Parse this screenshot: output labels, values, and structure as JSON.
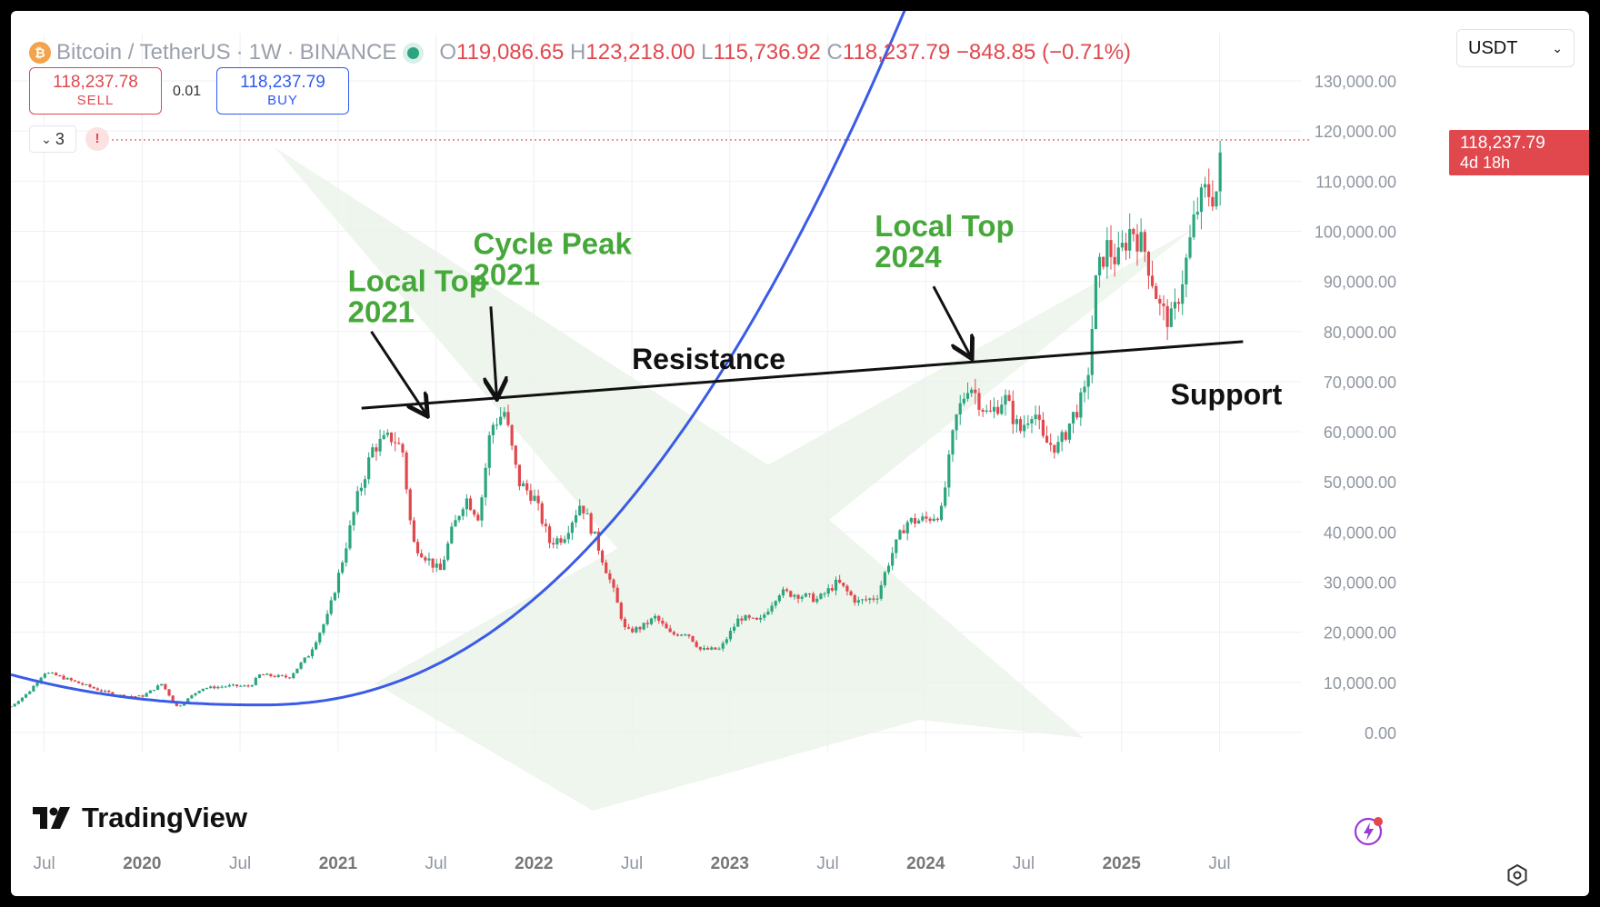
{
  "header": {
    "symbol": "Bitcoin / TetherUS",
    "interval": "1W",
    "exchange": "BINANCE",
    "dot_sep": "·",
    "o_label": "O",
    "o_value": "119,086.65",
    "h_label": "H",
    "h_value": "123,218.00",
    "l_label": "L",
    "l_value": "115,736.92",
    "c_label": "C",
    "c_value": "118,237.79",
    "change": "−848.85 (−0.71%)"
  },
  "trade": {
    "sell_price": "118,237.78",
    "sell_label": "SELL",
    "spread": "0.01",
    "buy_price": "118,237.79",
    "buy_label": "BUY"
  },
  "indicators": {
    "count": "3",
    "alert": "!"
  },
  "currency": {
    "selected": "USDT"
  },
  "price_tag": {
    "price": "118,237.79",
    "countdown": "4d 18h"
  },
  "logo": {
    "text": "TradingView"
  },
  "colors": {
    "up": "#2ba57f",
    "down": "#e0484e",
    "support": "#3a5be8",
    "resistance": "#111111",
    "annotation": "#46a83a"
  },
  "chart_data": {
    "type": "candlestick",
    "title": "Bitcoin / TetherUS · 1W · BINANCE",
    "ylabel": "",
    "xlabel": "",
    "ylim": [
      -2000,
      134000
    ],
    "xlim": [
      2019.33,
      2025.92
    ],
    "yticks": [
      0,
      10000,
      20000,
      30000,
      40000,
      50000,
      60000,
      70000,
      80000,
      90000,
      100000,
      110000,
      120000,
      130000
    ],
    "ytick_labels": [
      "0.00",
      "10,000.00",
      "20,000.00",
      "30,000.00",
      "40,000.00",
      "50,000.00",
      "60,000.00",
      "70,000.00",
      "80,000.00",
      "90,000.00",
      "100,000.00",
      "110,000.00",
      "120,000.00",
      "130,000.00"
    ],
    "xticks": [
      {
        "x": 2019.5,
        "label": "Jul",
        "bold": false
      },
      {
        "x": 2020.0,
        "label": "2020",
        "bold": true
      },
      {
        "x": 2020.5,
        "label": "Jul",
        "bold": false
      },
      {
        "x": 2021.0,
        "label": "2021",
        "bold": true
      },
      {
        "x": 2021.5,
        "label": "Jul",
        "bold": false
      },
      {
        "x": 2022.0,
        "label": "2022",
        "bold": true
      },
      {
        "x": 2022.5,
        "label": "Jul",
        "bold": false
      },
      {
        "x": 2023.0,
        "label": "2023",
        "bold": true
      },
      {
        "x": 2023.5,
        "label": "Jul",
        "bold": false
      },
      {
        "x": 2024.0,
        "label": "2024",
        "bold": true
      },
      {
        "x": 2024.5,
        "label": "Jul",
        "bold": false
      },
      {
        "x": 2025.0,
        "label": "2025",
        "bold": true
      },
      {
        "x": 2025.5,
        "label": "Jul",
        "bold": false
      }
    ],
    "grid": true,
    "last_price": 118237.79,
    "price_path": [
      [
        2019.33,
        5200
      ],
      [
        2019.42,
        8000
      ],
      [
        2019.5,
        12000
      ],
      [
        2019.55,
        11500
      ],
      [
        2019.65,
        10200
      ],
      [
        2019.8,
        8200
      ],
      [
        2019.9,
        7300
      ],
      [
        2020.0,
        7200
      ],
      [
        2020.1,
        9700
      ],
      [
        2020.18,
        5000
      ],
      [
        2020.3,
        8800
      ],
      [
        2020.45,
        9300
      ],
      [
        2020.55,
        9200
      ],
      [
        2020.6,
        11500
      ],
      [
        2020.75,
        11000
      ],
      [
        2020.85,
        15500
      ],
      [
        2020.95,
        23500
      ],
      [
        2021.02,
        34000
      ],
      [
        2021.1,
        47000
      ],
      [
        2021.18,
        57000
      ],
      [
        2021.28,
        59000
      ],
      [
        2021.33,
        56000
      ],
      [
        2021.38,
        38000
      ],
      [
        2021.45,
        35000
      ],
      [
        2021.52,
        32000
      ],
      [
        2021.58,
        40000
      ],
      [
        2021.65,
        47000
      ],
      [
        2021.72,
        43000
      ],
      [
        2021.78,
        61000
      ],
      [
        2021.85,
        64000
      ],
      [
        2021.92,
        50000
      ],
      [
        2022.0,
        47000
      ],
      [
        2022.08,
        38000
      ],
      [
        2022.15,
        39000
      ],
      [
        2022.24,
        46000
      ],
      [
        2022.32,
        38000
      ],
      [
        2022.4,
        29000
      ],
      [
        2022.47,
        20000
      ],
      [
        2022.55,
        21000
      ],
      [
        2022.62,
        23000
      ],
      [
        2022.7,
        19500
      ],
      [
        2022.78,
        20000
      ],
      [
        2022.85,
        16500
      ],
      [
        2022.95,
        16600
      ],
      [
        2023.05,
        23000
      ],
      [
        2023.15,
        22000
      ],
      [
        2023.25,
        28000
      ],
      [
        2023.35,
        27500
      ],
      [
        2023.45,
        26500
      ],
      [
        2023.55,
        30000
      ],
      [
        2023.65,
        26000
      ],
      [
        2023.75,
        27000
      ],
      [
        2023.82,
        35000
      ],
      [
        2023.9,
        42000
      ],
      [
        2024.0,
        42500
      ],
      [
        2024.08,
        44000
      ],
      [
        2024.15,
        62000
      ],
      [
        2024.22,
        70000
      ],
      [
        2024.32,
        63000
      ],
      [
        2024.4,
        67000
      ],
      [
        2024.48,
        60000
      ],
      [
        2024.55,
        65000
      ],
      [
        2024.6,
        58000
      ],
      [
        2024.68,
        57000
      ],
      [
        2024.75,
        63000
      ],
      [
        2024.82,
        68000
      ],
      [
        2024.87,
        90000
      ],
      [
        2024.92,
        97000
      ],
      [
        2024.98,
        94000
      ],
      [
        2025.05,
        101000
      ],
      [
        2025.12,
        96000
      ],
      [
        2025.2,
        84000
      ],
      [
        2025.26,
        82000
      ],
      [
        2025.33,
        94000
      ],
      [
        2025.38,
        104000
      ],
      [
        2025.43,
        108000
      ],
      [
        2025.48,
        107000
      ],
      [
        2025.52,
        118237.79
      ]
    ],
    "resistance_line": {
      "label": "Resistance",
      "points": [
        [
          2021.12,
          64700
        ],
        [
          2025.62,
          78000
        ]
      ]
    },
    "support_curve": {
      "label": "Support",
      "x_range": [
        2019.33,
        2025.58
      ],
      "a": 5500,
      "b": 1.4e-05,
      "x0": 2020.6,
      "exp": 2.2
    },
    "annotations": [
      {
        "text": [
          "Local Top",
          "2021"
        ],
        "text_x": 2021.05,
        "text_y": 88000,
        "tail": [
          2021.17,
          80000
        ],
        "head": [
          2021.45,
          63500
        ]
      },
      {
        "text": [
          "Cycle Peak",
          "2021"
        ],
        "text_x": 2021.69,
        "text_y": 95500,
        "tail": [
          2021.78,
          85000
        ],
        "head": [
          2021.81,
          67000
        ]
      },
      {
        "text": [
          "Local Top",
          "2024"
        ],
        "text_x": 2023.74,
        "text_y": 99000,
        "tail": [
          2024.04,
          89000
        ],
        "head": [
          2024.23,
          75000
        ]
      }
    ]
  }
}
